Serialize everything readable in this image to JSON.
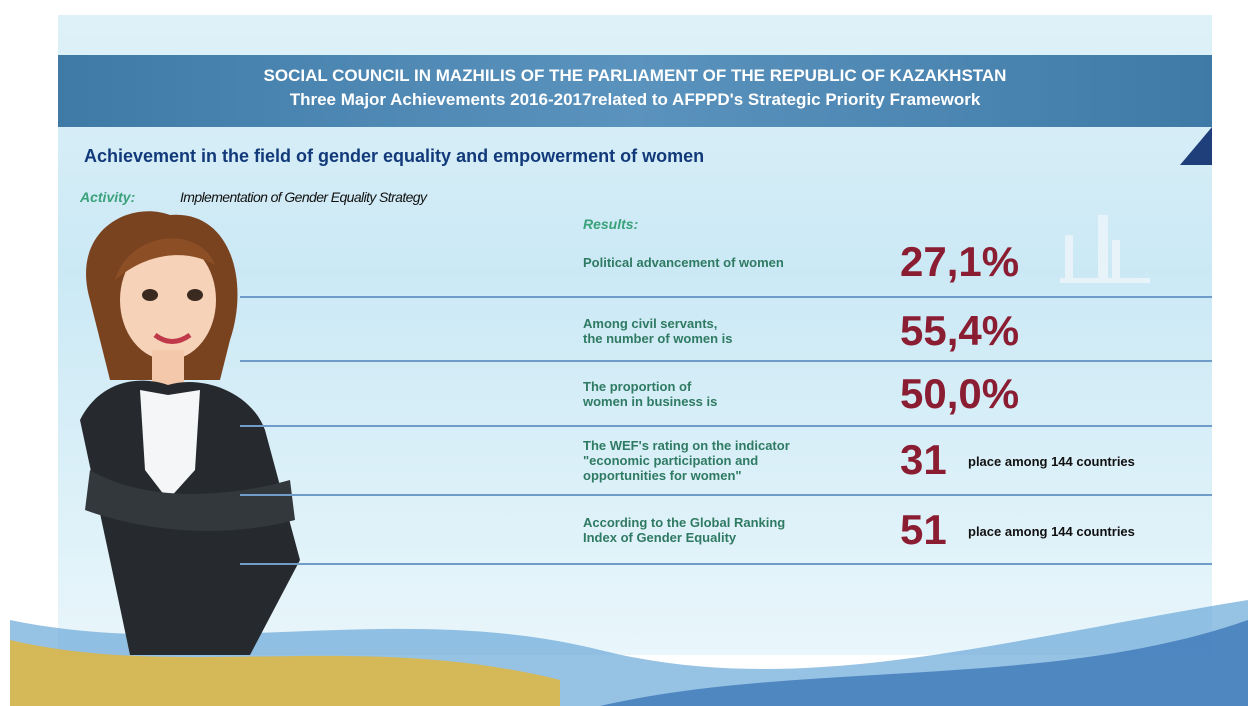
{
  "header": {
    "title": "SOCIAL COUNCIL IN MAZHILIS OF THE PARLIAMENT OF THE REPUBLIC OF KAZAKHSTAN",
    "subtitle": "Three Major Achievements 2016-2017related to AFPPD's Strategic Priority Framework"
  },
  "section_title": "Achievement in the field of gender equality and empowerment of women",
  "activity": {
    "label": "Activity:",
    "text": "Implementation of Gender Equality Strategy"
  },
  "results": {
    "label": "Results:",
    "rows": [
      {
        "label": "Political advancement of women",
        "value": "27,1%"
      },
      {
        "label": "Among civil servants,\nthe number of women is",
        "value": "55,4%"
      },
      {
        "label": "The proportion of\nwomen in business is",
        "value": "50,0%"
      },
      {
        "label": "The WEF's rating on the indicator\n\"economic participation and\nopportunities for women\"",
        "value": "31",
        "suffix": "place among 144 countries"
      },
      {
        "label": "According to the Global Ranking\nIndex of Gender Equality",
        "value": "51",
        "suffix": "place among 144 countries"
      }
    ]
  }
}
